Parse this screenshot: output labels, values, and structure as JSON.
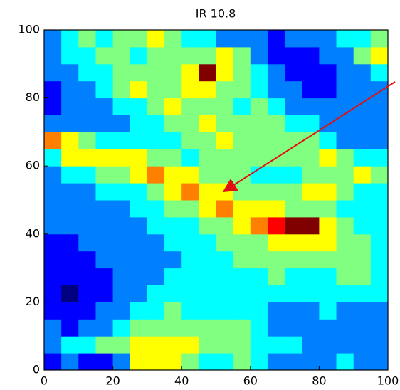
{
  "chart_data": {
    "type": "heatmap",
    "title": "IR 10.8",
    "colormap": "jet",
    "xlim": [
      0,
      100
    ],
    "ylim": [
      0,
      100
    ],
    "xticks": [
      0,
      20,
      40,
      60,
      80,
      100
    ],
    "yticks": [
      0,
      20,
      40,
      60,
      80,
      100
    ],
    "z": [
      [
        2,
        3,
        2,
        2,
        3,
        6,
        6,
        6,
        5,
        4,
        4,
        5,
        4,
        3,
        3,
        3,
        3,
        4,
        3,
        3
      ],
      [
        3,
        4,
        4,
        5,
        5,
        6,
        6,
        6,
        6,
        5,
        5,
        5,
        4,
        4,
        4,
        3,
        3,
        3,
        3,
        3
      ],
      [
        3,
        2,
        3,
        3,
        4,
        5,
        5,
        5,
        5,
        5,
        5,
        5,
        4,
        3,
        3,
        3,
        3,
        3,
        3,
        3
      ],
      [
        2,
        2,
        2,
        3,
        3,
        4,
        4,
        5,
        4,
        4,
        4,
        4,
        4,
        3,
        3,
        3,
        4,
        3,
        3,
        3
      ],
      [
        2,
        1,
        2,
        2,
        3,
        3,
        4,
        4,
        4,
        4,
        4,
        4,
        4,
        4,
        4,
        4,
        4,
        4,
        4,
        4
      ],
      [
        2,
        2,
        2,
        2,
        3,
        3,
        3,
        4,
        4,
        4,
        4,
        4,
        4,
        5,
        4,
        4,
        4,
        5,
        5,
        4
      ],
      [
        2,
        2,
        2,
        3,
        3,
        3,
        3,
        3,
        4,
        4,
        4,
        5,
        5,
        5,
        5,
        5,
        5,
        5,
        5,
        4
      ],
      [
        2,
        2,
        3,
        3,
        3,
        3,
        3,
        4,
        4,
        4,
        5,
        5,
        5,
        6,
        6,
        6,
        6,
        5,
        5,
        4
      ],
      [
        3,
        3,
        3,
        3,
        3,
        3,
        4,
        4,
        4,
        5,
        5,
        6,
        7,
        8,
        9,
        9,
        6,
        5,
        4,
        4
      ],
      [
        3,
        3,
        3,
        3,
        3,
        4,
        4,
        5,
        5,
        6,
        7,
        6,
        6,
        6,
        5,
        5,
        5,
        4,
        4,
        4
      ],
      [
        3,
        3,
        3,
        4,
        4,
        4,
        5,
        6,
        7,
        6,
        6,
        5,
        5,
        5,
        5,
        6,
        6,
        5,
        4,
        4
      ],
      [
        3,
        4,
        4,
        5,
        5,
        6,
        7,
        6,
        6,
        5,
        5,
        5,
        4,
        4,
        4,
        5,
        5,
        5,
        6,
        5
      ],
      [
        4,
        6,
        6,
        6,
        6,
        6,
        5,
        5,
        4,
        5,
        5,
        5,
        5,
        5,
        5,
        5,
        6,
        5,
        4,
        4
      ],
      [
        7,
        6,
        5,
        4,
        4,
        4,
        4,
        4,
        5,
        5,
        6,
        5,
        5,
        5,
        5,
        5,
        4,
        3,
        3,
        3
      ],
      [
        3,
        3,
        3,
        3,
        3,
        4,
        4,
        5,
        5,
        6,
        5,
        5,
        5,
        5,
        4,
        4,
        3,
        3,
        3,
        3
      ],
      [
        2,
        3,
        3,
        3,
        4,
        4,
        5,
        6,
        5,
        5,
        5,
        4,
        5,
        4,
        3,
        3,
        3,
        3,
        3,
        3
      ],
      [
        2,
        3,
        3,
        4,
        5,
        6,
        5,
        5,
        6,
        6,
        5,
        5,
        4,
        3,
        3,
        2,
        2,
        3,
        3,
        3
      ],
      [
        3,
        3,
        4,
        4,
        5,
        5,
        5,
        5,
        6,
        9,
        6,
        5,
        4,
        3,
        2,
        2,
        2,
        3,
        3,
        4
      ],
      [
        3,
        4,
        4,
        5,
        5,
        4,
        5,
        5,
        5,
        5,
        6,
        5,
        3,
        2,
        2,
        2,
        3,
        3,
        5,
        6
      ],
      [
        3,
        4,
        5,
        4,
        5,
        5,
        6,
        5,
        4,
        4,
        3,
        3,
        3,
        2,
        3,
        3,
        3,
        4,
        4,
        5
      ]
    ]
  }
}
